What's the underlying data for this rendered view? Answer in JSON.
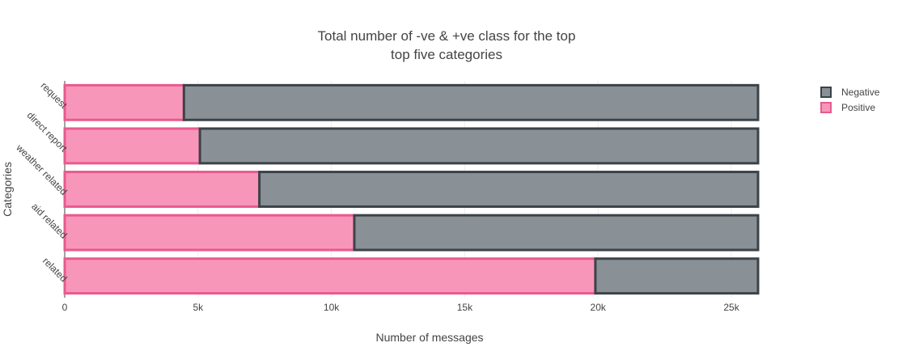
{
  "chart_data": {
    "type": "bar",
    "orientation": "horizontal",
    "barmode": "stack",
    "title_lines": [
      "Total number of -ve & +ve class for the top",
      "top five categories"
    ],
    "xlabel": "Number of messages",
    "ylabel": "Categories",
    "xlim": [
      0,
      26000
    ],
    "x_ticks": [
      0,
      5000,
      10000,
      15000,
      20000,
      25000
    ],
    "x_tick_labels": [
      "0",
      "5k",
      "10k",
      "15k",
      "20k",
      "25k"
    ],
    "categories": [
      "related",
      "aid related",
      "weather related",
      "direct report",
      "request"
    ],
    "series": [
      {
        "name": "Positive",
        "values": [
          19900,
          10860,
          7300,
          5070,
          4470
        ],
        "color": "#f896b9",
        "border": "#e85a8e"
      },
      {
        "name": "Negative",
        "values": [
          6100,
          15140,
          18700,
          20930,
          21530
        ],
        "color": "#8a9196",
        "border": "#3b4349"
      }
    ],
    "legend_order": [
      "Negative",
      "Positive"
    ],
    "legend_position": "top-right",
    "grid": true
  }
}
